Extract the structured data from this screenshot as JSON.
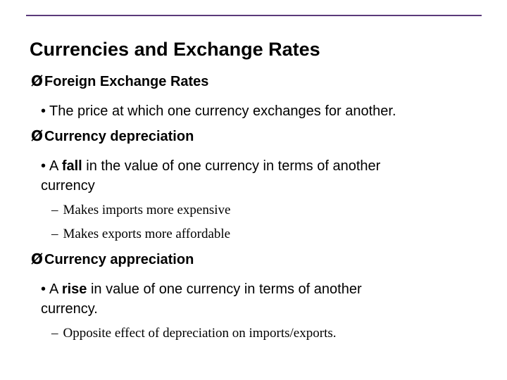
{
  "slide": {
    "title": "Currencies and Exchange Rates",
    "arrow": "Ø",
    "bullet": "•",
    "dash": "–",
    "sections": [
      {
        "heading": "Foreign Exchange Rates",
        "points": [
          {
            "text": "The price at which one currency exchanges for another."
          }
        ]
      },
      {
        "heading": "Currency depreciation",
        "points": [
          {
            "pre": "A ",
            "emph": "fall",
            "post": " in the value of one currency in terms of another",
            "cont": "currency"
          }
        ],
        "subpoints": [
          "Makes imports more expensive",
          "Makes exports more affordable"
        ]
      },
      {
        "heading": "Currency appreciation",
        "points": [
          {
            "pre": "A ",
            "emph": "rise",
            "post": " in value of one currency in terms of another",
            "cont": "currency."
          }
        ],
        "subpoints": [
          "Opposite effect of depreciation on imports/exports."
        ]
      }
    ]
  }
}
